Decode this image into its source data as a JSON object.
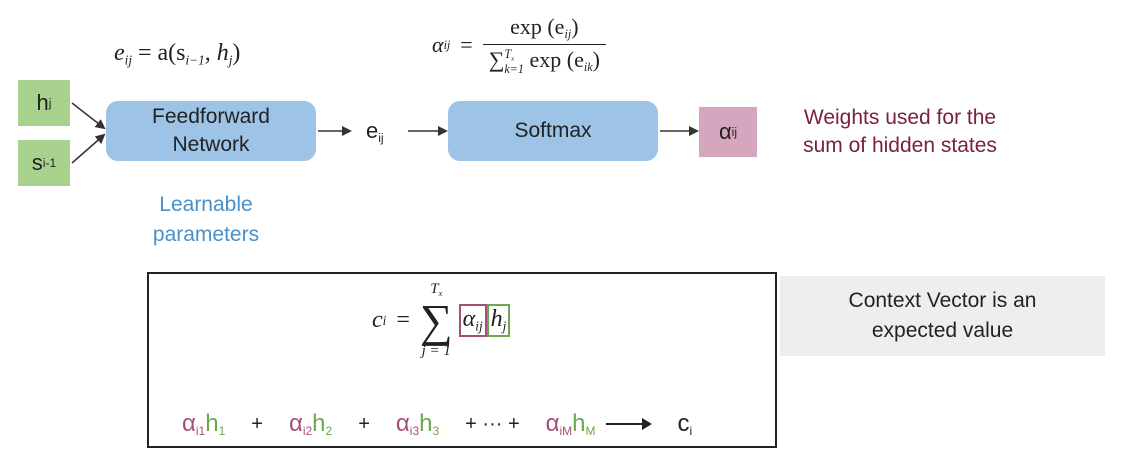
{
  "inputs": {
    "h": {
      "base": "h",
      "sub": "j"
    },
    "s": {
      "base": "s",
      "sub": "i-1"
    }
  },
  "ffn": {
    "line1": "Feedforward",
    "line2": "Network"
  },
  "e_label": {
    "base": "e",
    "sub": "ij"
  },
  "softmax": {
    "label": "Softmax"
  },
  "alpha_out": {
    "base": "α",
    "sub": "ij"
  },
  "weights_caption": {
    "line1": "Weights used for the",
    "line2": "sum of hidden states"
  },
  "learnable_caption": {
    "line1": "Learnable",
    "line2": "parameters"
  },
  "context_caption": {
    "line1": "Context Vector is an",
    "line2": "expected value"
  },
  "equations": {
    "energy": {
      "lhs": "e",
      "lhs_sub": "ij",
      "eq": " = a(s",
      "s_sub": "i−1",
      "rest": ", h",
      "h_sub": "j",
      "close": ")"
    },
    "softmax": {
      "lhs": "α",
      "lhs_sub": "ij",
      "eq": "=",
      "num": "exp (e",
      "num_sub": "ij",
      "num_close": ")",
      "den_sum": "∑",
      "den_upper": "T",
      "den_upper_sub": "x",
      "den_lower": "k=1",
      "den_body": " exp (e",
      "den_sub": "ik",
      "den_close": ")"
    },
    "context": {
      "lhs": "c",
      "lhs_sub": "i",
      "eq": "=",
      "sum": "∑",
      "upper": "T",
      "upper_sub": "x",
      "lower": "j = 1",
      "alpha": "α",
      "alpha_sub": "ij",
      "h": "h",
      "h_sub": "j"
    }
  },
  "expansion": {
    "terms": [
      {
        "a": "α",
        "a_sub": "i1",
        "h": "h",
        "h_sub": "1"
      },
      {
        "a": "α",
        "a_sub": "i2",
        "h": "h",
        "h_sub": "2"
      },
      {
        "a": "α",
        "a_sub": "i3",
        "h": "h",
        "h_sub": "3"
      },
      {
        "a": "α",
        "a_sub": "iM",
        "h": "h",
        "h_sub": "M"
      }
    ],
    "plus": "+",
    "ellipsis": "+ ··· +",
    "result": "c",
    "result_sub": "i"
  },
  "colors": {
    "green": "#a9d18e",
    "blue": "#9dc3e6",
    "pink": "#d5a6bd",
    "weights_text": "#7a2040",
    "learnable_text": "#4a90c8"
  }
}
